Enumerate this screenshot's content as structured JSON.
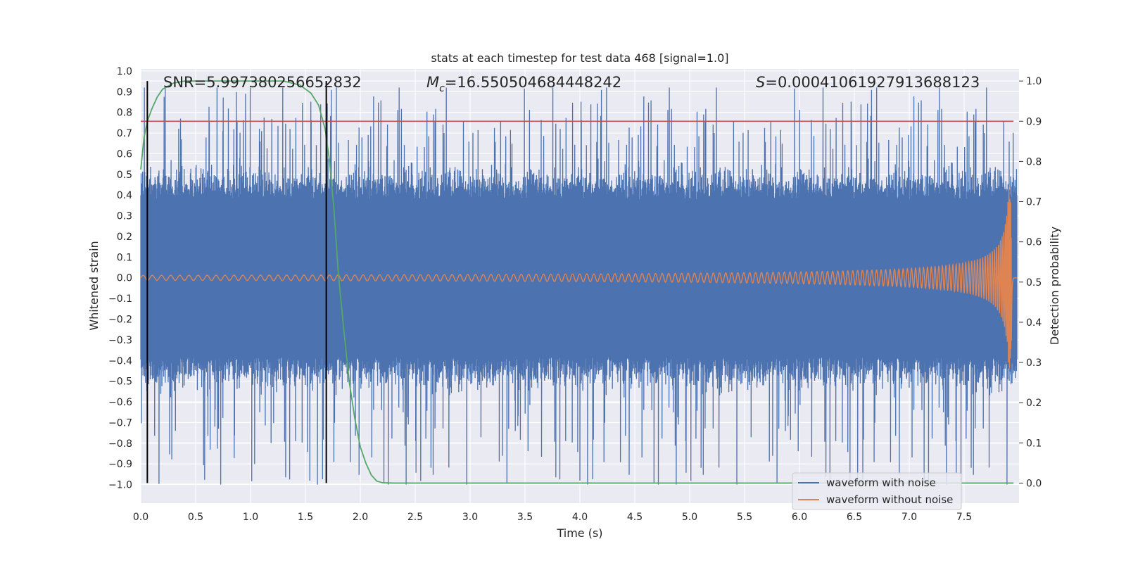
{
  "chart_data": {
    "type": "line",
    "title": "stats at each timestep for test data 468 [signal=1.0]",
    "xlabel": "Time (s)",
    "ylabel": "Whitened strain",
    "y2label": "Detection probability",
    "xlim": [
      0.0,
      8.0
    ],
    "ylim": [
      -1.09,
      1.01
    ],
    "y2lim": [
      -0.05,
      1.03
    ],
    "xticks": [
      "0.0",
      "0.5",
      "1.0",
      "1.5",
      "2.0",
      "2.5",
      "3.0",
      "3.5",
      "4.0",
      "4.5",
      "5.0",
      "5.5",
      "6.0",
      "6.5",
      "7.0",
      "7.5"
    ],
    "yticks": [
      "1.0",
      "0.9",
      "0.8",
      "0.7",
      "0.6",
      "0.5",
      "0.4",
      "0.3",
      "0.2",
      "0.1",
      "0.0",
      "-0.1",
      "-0.2",
      "-0.3",
      "-0.4",
      "-0.5",
      "-0.6",
      "-0.7",
      "-0.8",
      "-0.9",
      "-1.0"
    ],
    "y2ticks": [
      "1.0",
      "0.9",
      "0.8",
      "0.7",
      "0.6",
      "0.5",
      "0.4",
      "0.3",
      "0.2",
      "0.1",
      "0.0"
    ],
    "annotations": {
      "snr": "SNR=5.997380256652832",
      "mc": "=16.550504684448242",
      "s": "=0.00041061927913688123"
    },
    "vertical_markers": [
      0.06,
      1.69
    ],
    "threshold": 0.9,
    "series": [
      {
        "name": "waveform with noise",
        "color": "#4c72b0",
        "axis": "left",
        "noise_envelope": 0.42,
        "peak_range": [
          -1.0,
          0.92
        ]
      },
      {
        "name": "waveform without noise",
        "color": "#dd8452",
        "axis": "left",
        "chirp_peak": [
          -0.42,
          0.46
        ],
        "merger_time": 7.93
      },
      {
        "name": "detection probability",
        "color": "#55a868",
        "axis": "right",
        "x": [
          0.0,
          0.03,
          0.06,
          0.1,
          0.15,
          0.2,
          0.3,
          0.4,
          0.5,
          1.0,
          1.3,
          1.45,
          1.55,
          1.62,
          1.68,
          1.72,
          1.76,
          1.8,
          1.85,
          1.9,
          1.95,
          2.0,
          2.05,
          2.1,
          2.15,
          2.2,
          2.3,
          2.5,
          3.0,
          5.0,
          7.0,
          7.95
        ],
        "y": [
          0.78,
          0.86,
          0.9,
          0.93,
          0.96,
          0.98,
          0.995,
          1.0,
          1.0,
          1.0,
          1.0,
          0.99,
          0.97,
          0.94,
          0.88,
          0.8,
          0.68,
          0.52,
          0.38,
          0.25,
          0.16,
          0.09,
          0.05,
          0.02,
          0.005,
          0.001,
          0.0,
          0.0,
          0.0,
          0.0,
          0.0,
          0.0
        ]
      },
      {
        "name": "threshold",
        "color": "#c44e52",
        "axis": "right",
        "y": 0.9
      }
    ],
    "legend": [
      "waveform with noise",
      "waveform without noise"
    ],
    "legend_position": "lower-right"
  }
}
